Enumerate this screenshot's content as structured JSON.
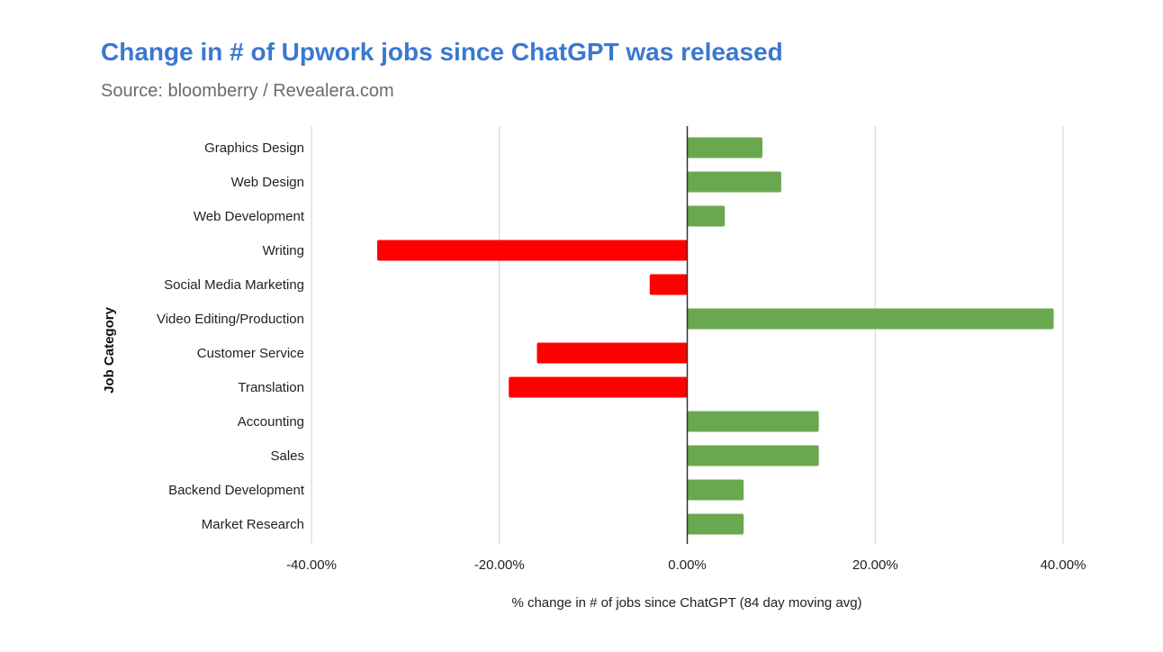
{
  "chart_data": {
    "type": "bar",
    "orientation": "horizontal",
    "title": "Change in # of Upwork jobs since ChatGPT was released",
    "subtitle": "Source: bloomberry / Revealera.com",
    "xlabel": "% change in # of jobs since ChatGPT (84 day moving avg)",
    "ylabel": "Job Category",
    "xlim": [
      -40,
      40
    ],
    "xticks": [
      -40,
      -20,
      0,
      20,
      40
    ],
    "xtick_labels": [
      "-40.00%",
      "-20.00%",
      "0.00%",
      "20.00%",
      "40.00%"
    ],
    "grid": true,
    "legend": "none",
    "colors": {
      "positive": "#6aa84f",
      "negative": "#ff0000",
      "title": "#3a78d0",
      "gridline": "#d0d0d0",
      "zero_line": "#333333"
    },
    "categories": [
      "Graphics Design",
      "Web Design",
      "Web Development",
      "Writing",
      "Social Media Marketing",
      "Video Editing/Production",
      "Customer Service",
      "Translation",
      "Accounting",
      "Sales",
      "Backend Development",
      "Market Research"
    ],
    "values": [
      8,
      10,
      4,
      -33,
      -4,
      39,
      -16,
      -19,
      14,
      14,
      6,
      6
    ]
  }
}
